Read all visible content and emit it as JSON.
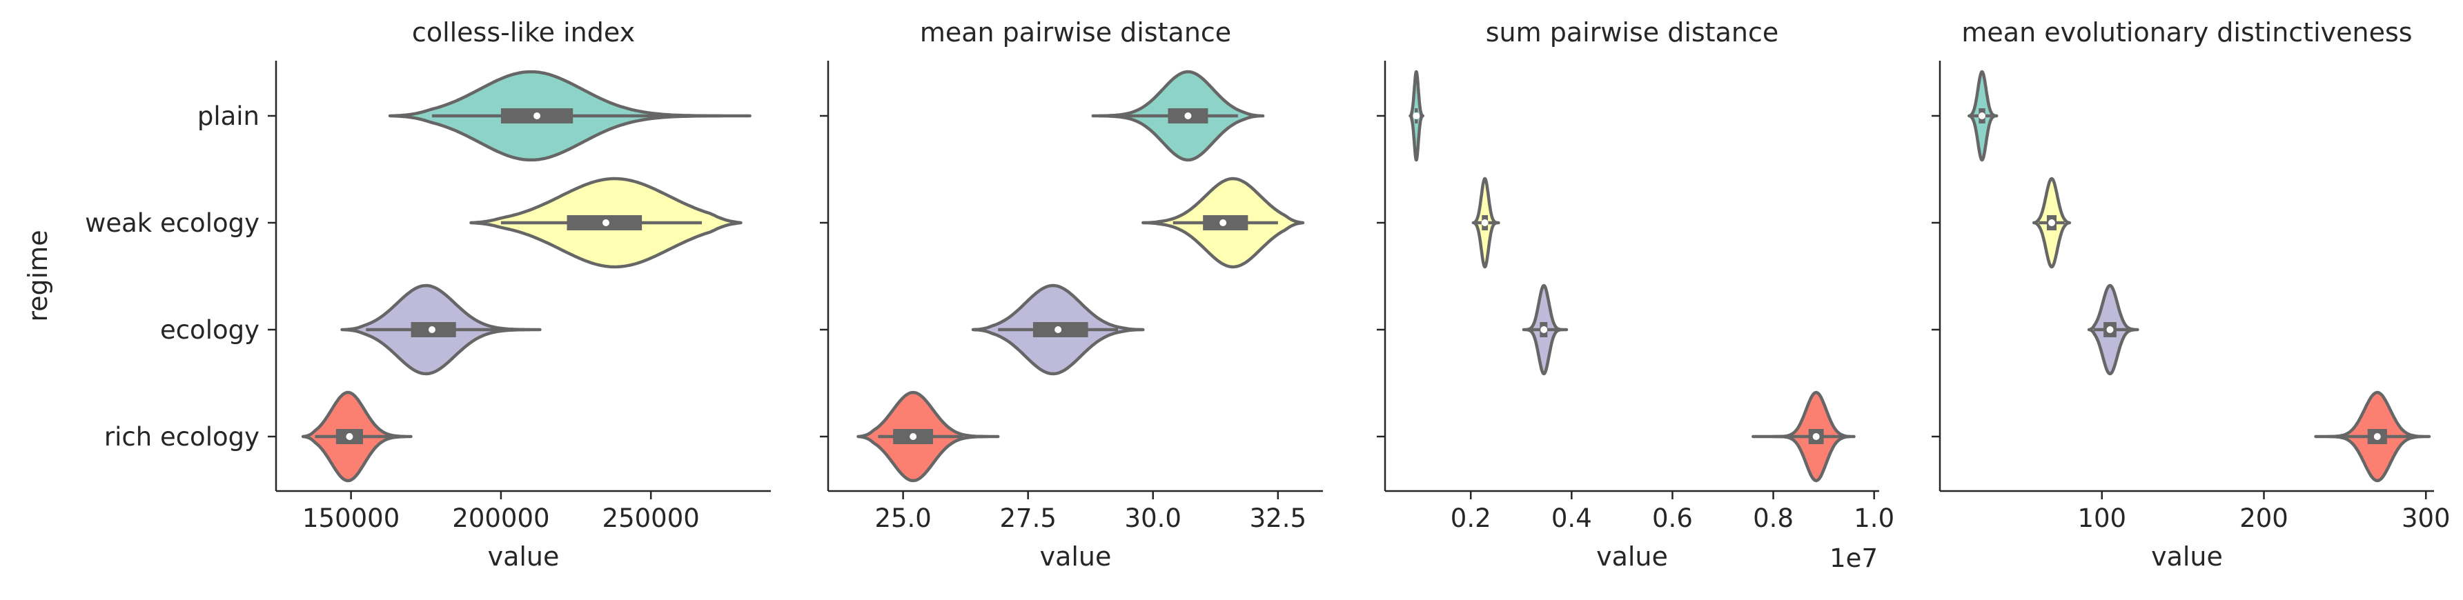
{
  "chart_data": {
    "type": "violin",
    "ylabel": "regime",
    "categories": [
      "plain",
      "weak ecology",
      "ecology",
      "rich ecology"
    ],
    "colors": [
      "#8dd3c7",
      "#ffffb3",
      "#bebada",
      "#fb8072"
    ],
    "panels": [
      {
        "title": "colless-like index",
        "xlabel": "value",
        "xlim": [
          125000,
          290000
        ],
        "xticks": [
          150000,
          200000,
          250000
        ],
        "xtick_labels": [
          "150000",
          "200000",
          "250000"
        ],
        "offset_text": "",
        "violins": [
          {
            "category": "plain",
            "min": 163000,
            "max": 283000,
            "q1": 200000,
            "median": 212000,
            "q3": 224000,
            "wlo": 177000,
            "whi": 262000,
            "mode": 210000,
            "sd": 17000
          },
          {
            "category": "weak ecology",
            "min": 190000,
            "max": 280000,
            "q1": 222000,
            "median": 235000,
            "q3": 247000,
            "wlo": 200000,
            "whi": 267000,
            "mode": 238000,
            "sd": 18000
          },
          {
            "category": "ecology",
            "min": 147000,
            "max": 213000,
            "q1": 170000,
            "median": 177000,
            "q3": 185000,
            "wlo": 155000,
            "whi": 203000,
            "mode": 175000,
            "sd": 9500
          },
          {
            "category": "rich ecology",
            "min": 134000,
            "max": 170000,
            "q1": 145000,
            "median": 149500,
            "q3": 154000,
            "wlo": 138000,
            "whi": 163000,
            "mode": 149000,
            "sd": 5500
          }
        ]
      },
      {
        "title": "mean pairwise distance",
        "xlabel": "value",
        "xlim": [
          23.5,
          33.4
        ],
        "xticks": [
          25.0,
          27.5,
          30.0,
          32.5
        ],
        "xtick_labels": [
          "25.0",
          "27.5",
          "30.0",
          "32.5"
        ],
        "offset_text": "",
        "violins": [
          {
            "category": "plain",
            "min": 28.8,
            "max": 32.2,
            "q1": 30.3,
            "median": 30.7,
            "q3": 31.1,
            "wlo": 29.4,
            "whi": 31.7,
            "mode": 30.7,
            "sd": 0.5
          },
          {
            "category": "weak ecology",
            "min": 29.8,
            "max": 33.0,
            "q1": 31.0,
            "median": 31.4,
            "q3": 31.9,
            "wlo": 30.4,
            "whi": 32.5,
            "mode": 31.6,
            "sd": 0.55
          },
          {
            "category": "ecology",
            "min": 26.4,
            "max": 29.8,
            "q1": 27.6,
            "median": 28.1,
            "q3": 28.7,
            "wlo": 26.9,
            "whi": 29.3,
            "mode": 28.0,
            "sd": 0.55
          },
          {
            "category": "rich ecology",
            "min": 24.1,
            "max": 26.9,
            "q1": 24.8,
            "median": 25.2,
            "q3": 25.6,
            "wlo": 24.5,
            "whi": 26.2,
            "mode": 25.2,
            "sd": 0.4
          }
        ]
      },
      {
        "title": "sum pairwise distance",
        "xlabel": "value",
        "xlim": [
          0.03,
          1.01
        ],
        "xticks": [
          0.2,
          0.4,
          0.6,
          0.8,
          1.0
        ],
        "xtick_labels": [
          "0.2",
          "0.4",
          "0.6",
          "0.8",
          "1.0"
        ],
        "offset_text": "1e7",
        "violins": [
          {
            "category": "plain",
            "min": 0.08,
            "max": 0.105,
            "q1": 0.089,
            "median": 0.092,
            "q3": 0.095,
            "wlo": 0.084,
            "whi": 0.1,
            "mode": 0.092,
            "sd": 0.004
          },
          {
            "category": "weak ecology",
            "min": 0.205,
            "max": 0.255,
            "q1": 0.222,
            "median": 0.228,
            "q3": 0.234,
            "wlo": 0.212,
            "whi": 0.245,
            "mode": 0.228,
            "sd": 0.007
          },
          {
            "category": "ecology",
            "min": 0.305,
            "max": 0.39,
            "q1": 0.337,
            "median": 0.345,
            "q3": 0.352,
            "wlo": 0.318,
            "whi": 0.372,
            "mode": 0.345,
            "sd": 0.01
          },
          {
            "category": "rich ecology",
            "min": 0.76,
            "max": 0.96,
            "q1": 0.87,
            "median": 0.885,
            "q3": 0.9,
            "wlo": 0.8,
            "whi": 0.94,
            "mode": 0.885,
            "sd": 0.02
          }
        ]
      },
      {
        "title": "mean evolutionary distinctiveness",
        "xlabel": "value",
        "xlim": [
          0,
          305
        ],
        "xticks": [
          100,
          200,
          300
        ],
        "xtick_labels": [
          "100",
          "200",
          "300"
        ],
        "offset_text": "",
        "violins": [
          {
            "category": "plain",
            "min": 18,
            "max": 35,
            "q1": 24,
            "median": 26,
            "q3": 28,
            "wlo": 20,
            "whi": 32,
            "mode": 26,
            "sd": 2.5
          },
          {
            "category": "weak ecology",
            "min": 58,
            "max": 80,
            "q1": 66,
            "median": 69,
            "q3": 72,
            "wlo": 61,
            "whi": 77,
            "mode": 69,
            "sd": 3.5
          },
          {
            "category": "ecology",
            "min": 92,
            "max": 122,
            "q1": 101,
            "median": 105,
            "q3": 109,
            "wlo": 95,
            "whi": 117,
            "mode": 105,
            "sd": 4.5
          },
          {
            "category": "rich ecology",
            "min": 232,
            "max": 302,
            "q1": 264,
            "median": 270,
            "q3": 276,
            "wlo": 245,
            "whi": 292,
            "mode": 270,
            "sd": 8
          }
        ]
      }
    ]
  }
}
